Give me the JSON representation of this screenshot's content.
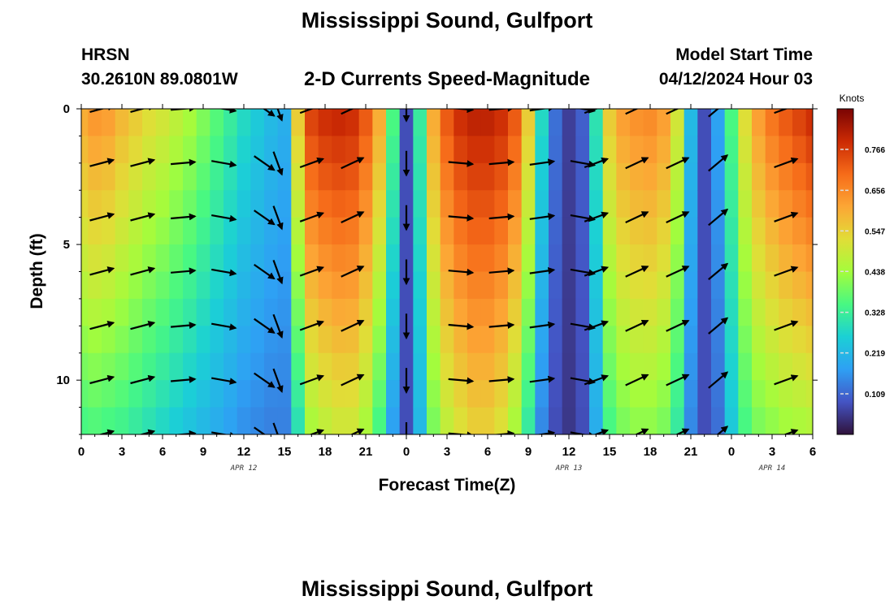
{
  "header": {
    "title": "Mississippi Sound, Gulfport",
    "station": "HRSN",
    "coords": "30.2610N  89.0801W",
    "subtitle": "2-D Currents Speed-Magnitude",
    "model_start_label": "Model Start Time",
    "model_start_value": "04/12/2024 Hour 03"
  },
  "footer": {
    "title": "Mississippi Sound, Gulfport"
  },
  "chart_data": {
    "type": "heatmap",
    "xlabel": "Forecast Time(Z)",
    "ylabel": "Depth (ft)",
    "x_tick_labels": [
      "0",
      "3",
      "6",
      "9",
      "12",
      "15",
      "18",
      "21",
      "0",
      "3",
      "6",
      "9",
      "12",
      "15",
      "18",
      "21",
      "0",
      "3",
      "6"
    ],
    "x_range_hours": [
      0,
      54
    ],
    "y_ticks": [
      0,
      5,
      10
    ],
    "y_range_ft": [
      0,
      12
    ],
    "date_labels": [
      {
        "text": "APR 12",
        "hour": 12
      },
      {
        "text": "APR 13",
        "hour": 36
      },
      {
        "text": "APR 14",
        "hour": 51
      }
    ],
    "colorbar": {
      "unit": "Knots",
      "ticks": [
        "0.766",
        "0.656",
        "0.547",
        "0.438",
        "0.328",
        "0.219",
        "0.109"
      ],
      "tick_values": [
        0.766,
        0.656,
        0.547,
        0.438,
        0.328,
        0.219,
        0.109
      ],
      "range": [
        0,
        0.875
      ],
      "colors": [
        "#30123b",
        "#4454c4",
        "#2ea0f4",
        "#1bd0d5",
        "#48f882",
        "#a4fc3c",
        "#e1dd37",
        "#fca635",
        "#f66b19",
        "#cb2a04",
        "#7a0403"
      ]
    },
    "speed_profile": {
      "hours": [
        0,
        1,
        2,
        3,
        4,
        5,
        6,
        7,
        8,
        9,
        10,
        11,
        12,
        13,
        14,
        15,
        16,
        17,
        18,
        19,
        20,
        21,
        22,
        23,
        24,
        25,
        26,
        27,
        28,
        29,
        30,
        31,
        32,
        33,
        34,
        35,
        36,
        37,
        38,
        39,
        40,
        41,
        42,
        43,
        44,
        45,
        46,
        47,
        48,
        49,
        50,
        51,
        52,
        53,
        54
      ],
      "surface_knots": [
        0.6,
        0.63,
        0.62,
        0.58,
        0.55,
        0.52,
        0.5,
        0.47,
        0.44,
        0.4,
        0.36,
        0.32,
        0.28,
        0.25,
        0.22,
        0.2,
        0.55,
        0.75,
        0.78,
        0.79,
        0.78,
        0.72,
        0.6,
        0.35,
        0.08,
        0.32,
        0.6,
        0.72,
        0.78,
        0.8,
        0.8,
        0.78,
        0.72,
        0.55,
        0.28,
        0.12,
        0.06,
        0.1,
        0.3,
        0.55,
        0.62,
        0.64,
        0.65,
        0.62,
        0.5,
        0.22,
        0.08,
        0.18,
        0.35,
        0.52,
        0.62,
        0.68,
        0.72,
        0.75,
        0.78
      ],
      "bottom_knots": [
        0.35,
        0.36,
        0.35,
        0.34,
        0.32,
        0.3,
        0.28,
        0.26,
        0.24,
        0.22,
        0.2,
        0.18,
        0.16,
        0.15,
        0.14,
        0.14,
        0.3,
        0.45,
        0.48,
        0.5,
        0.5,
        0.45,
        0.35,
        0.18,
        0.08,
        0.22,
        0.4,
        0.48,
        0.52,
        0.55,
        0.55,
        0.52,
        0.45,
        0.32,
        0.15,
        0.08,
        0.05,
        0.08,
        0.2,
        0.35,
        0.4,
        0.42,
        0.42,
        0.4,
        0.32,
        0.15,
        0.08,
        0.12,
        0.25,
        0.35,
        0.4,
        0.42,
        0.44,
        0.45,
        0.46
      ]
    },
    "vectors": {
      "hours": [
        1.5,
        4.5,
        7.5,
        10.5,
        13.5,
        14.5,
        17,
        20,
        24,
        28,
        31,
        34,
        37,
        38,
        41,
        44,
        47,
        52
      ],
      "directions_deg": [
        15,
        15,
        5,
        -10,
        -35,
        -70,
        20,
        25,
        -90,
        -5,
        5,
        8,
        -10,
        20,
        25,
        25,
        40,
        20
      ],
      "depths_ft": [
        0,
        2,
        4,
        6,
        8,
        10,
        12
      ]
    }
  }
}
